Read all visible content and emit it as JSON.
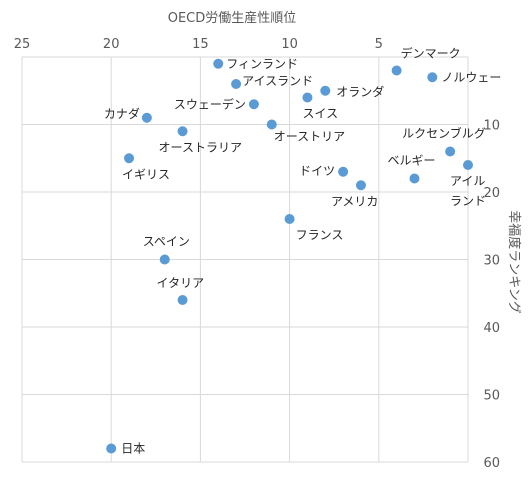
{
  "chart_data": {
    "type": "scatter",
    "xlabel": "OECD労働生産性順位",
    "ylabel": "幸福度ランキング",
    "x_axis_position": "top",
    "y_axis_position": "right",
    "x_reversed": true,
    "y_reversed": true,
    "xlim": [
      0,
      25
    ],
    "ylim": [
      0,
      60
    ],
    "xticks": [
      25,
      20,
      15,
      10,
      5
    ],
    "yticks": [
      10,
      20,
      30,
      40,
      50,
      60
    ],
    "grid": true,
    "marker_color": "#5b9bd5",
    "points": [
      {
        "label": "デンマーク",
        "x": 4,
        "y": 2
      },
      {
        "label": "ノルウェー",
        "x": 2,
        "y": 3
      },
      {
        "label": "フィンランド",
        "x": 14,
        "y": 1
      },
      {
        "label": "アイスランド",
        "x": 13,
        "y": 4
      },
      {
        "label": "オランダ",
        "x": 8,
        "y": 5
      },
      {
        "label": "スイス",
        "x": 9,
        "y": 6
      },
      {
        "label": "スウェーデン",
        "x": 12,
        "y": 7
      },
      {
        "label": "カナダ",
        "x": 18,
        "y": 9
      },
      {
        "label": "オーストリア",
        "x": 11,
        "y": 10
      },
      {
        "label": "オーストラリア",
        "x": 16,
        "y": 11
      },
      {
        "label": "ルクセンブルグ",
        "x": 1,
        "y": 14
      },
      {
        "label": "イギリス",
        "x": 19,
        "y": 15
      },
      {
        "label": "アイルランド",
        "x": 0,
        "y": 16
      },
      {
        "label": "ドイツ",
        "x": 7,
        "y": 17
      },
      {
        "label": "ベルギー",
        "x": 3,
        "y": 18
      },
      {
        "label": "アメリカ",
        "x": 6,
        "y": 19
      },
      {
        "label": "フランス",
        "x": 10,
        "y": 24
      },
      {
        "label": "スペイン",
        "x": 17,
        "y": 30
      },
      {
        "label": "イタリア",
        "x": 16,
        "y": 36
      },
      {
        "label": "日本",
        "x": 20,
        "y": 58
      }
    ]
  }
}
